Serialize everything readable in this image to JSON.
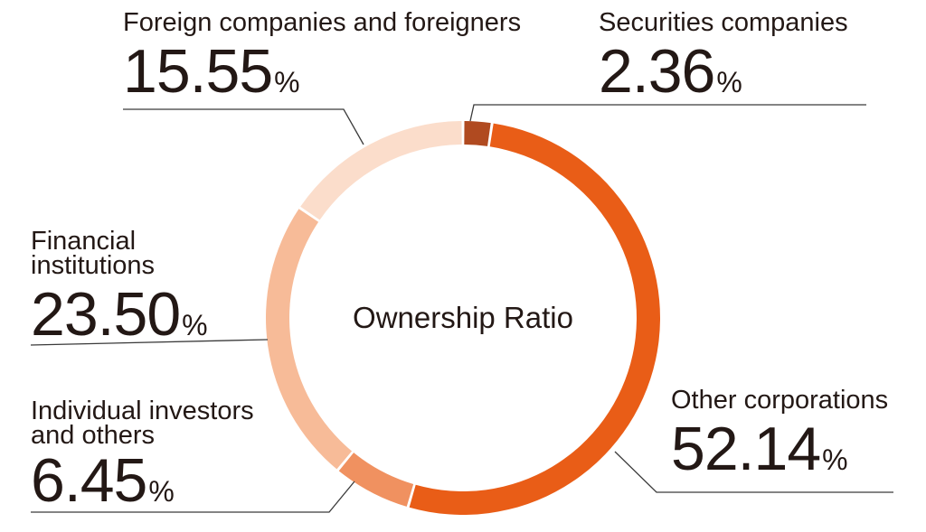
{
  "chart_data": {
    "type": "pie",
    "donut": true,
    "title": "Ownership Ratio",
    "unit": "%",
    "slices": [
      {
        "name": "Securities companies",
        "value": 2.36,
        "label": "2.36",
        "color": "#b04a20"
      },
      {
        "name": "Other corporations",
        "value": 52.14,
        "label": "52.14",
        "color": "#e95d17"
      },
      {
        "name": "Individual investors\nand others",
        "value": 6.45,
        "label": "6.45",
        "color": "#f09160"
      },
      {
        "name": "Financial\ninstitutions",
        "value": 23.5,
        "label": "23.50",
        "color": "#f7bb98"
      },
      {
        "name": "Foreign companies and foreigners",
        "value": 15.55,
        "label": "15.55",
        "color": "#fbddcb"
      }
    ]
  }
}
